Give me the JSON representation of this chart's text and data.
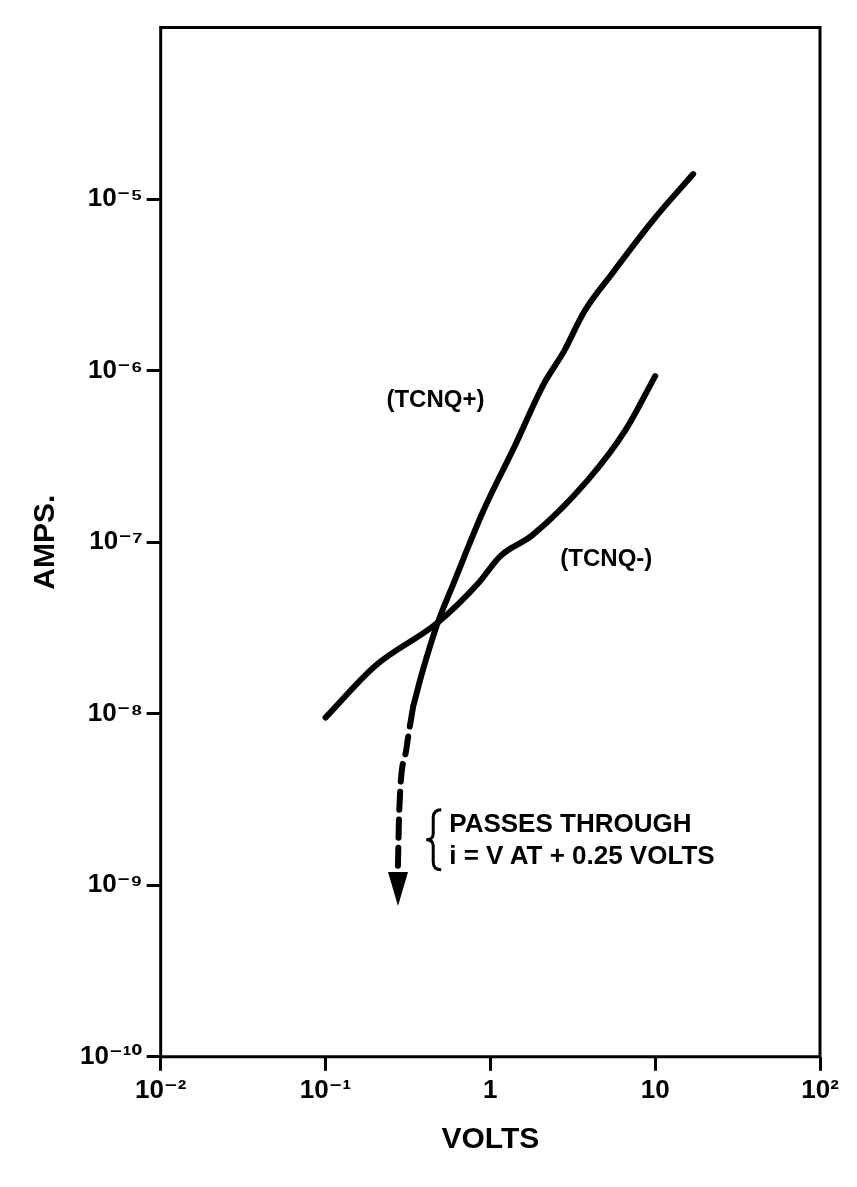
{
  "chart_data": {
    "type": "line",
    "xlabel": "VOLTS",
    "ylabel": "AMPS.",
    "log": "xy",
    "xlim": [
      0.01,
      100
    ],
    "xticks": [
      {
        "value": 0.01,
        "label": "10⁻²"
      },
      {
        "value": 0.1,
        "label": "10⁻¹"
      },
      1,
      10,
      {
        "value": 100,
        "label": "10²"
      }
    ],
    "ylim": [
      1e-10,
      0.0001
    ],
    "yticks": [
      {
        "value": 1e-10,
        "label": "10⁻¹⁰"
      },
      {
        "value": 1e-09,
        "label": "10⁻⁹"
      },
      {
        "value": 1e-08,
        "label": "10⁻⁸"
      },
      {
        "value": 1e-07,
        "label": "10⁻⁷"
      },
      {
        "value": 1e-06,
        "label": "10⁻⁶"
      },
      {
        "value": 1e-05,
        "label": "10⁻⁵"
      }
    ],
    "series": [
      {
        "name": "(TCNQ+)",
        "color": "#000000",
        "line_style": "solid",
        "x": [
          0.34,
          0.39,
          0.48,
          0.6,
          0.9,
          1.4,
          2.1,
          2.8,
          3.7,
          5.5,
          10,
          17
        ],
        "values": [
          1.1e-08,
          1.8e-08,
          3.4e-08,
          5.8e-08,
          1.5e-07,
          3.6e-07,
          8.3e-07,
          1.3e-06,
          2.2e-06,
          3.7e-06,
          7.8e-06,
          1.4e-05
        ]
      },
      {
        "color": "#000000",
        "line_style": "dashed",
        "x": [
          0.275,
          0.28,
          0.31,
          0.34
        ],
        "values": [
          1.3e-09,
          2.7e-09,
          6.3e-09,
          1.1e-08
        ]
      },
      {
        "name": "(TCNQ-)",
        "color": "#000000",
        "line_style": "solid",
        "x": [
          0.1,
          0.2,
          0.48,
          0.85,
          1.15,
          1.8,
          3.9,
          6.6,
          10
        ],
        "values": [
          9.5e-09,
          1.9e-08,
          3.4e-08,
          5.8e-08,
          8.3e-08,
          1.1e-07,
          2.3e-07,
          4.5e-07,
          9.3e-07
        ]
      }
    ],
    "annotations": [
      {
        "text": "PASSES THROUGH\ni = V AT + 0.25 VOLTS",
        "x": 0.28,
        "y": 2e-09
      }
    ]
  }
}
